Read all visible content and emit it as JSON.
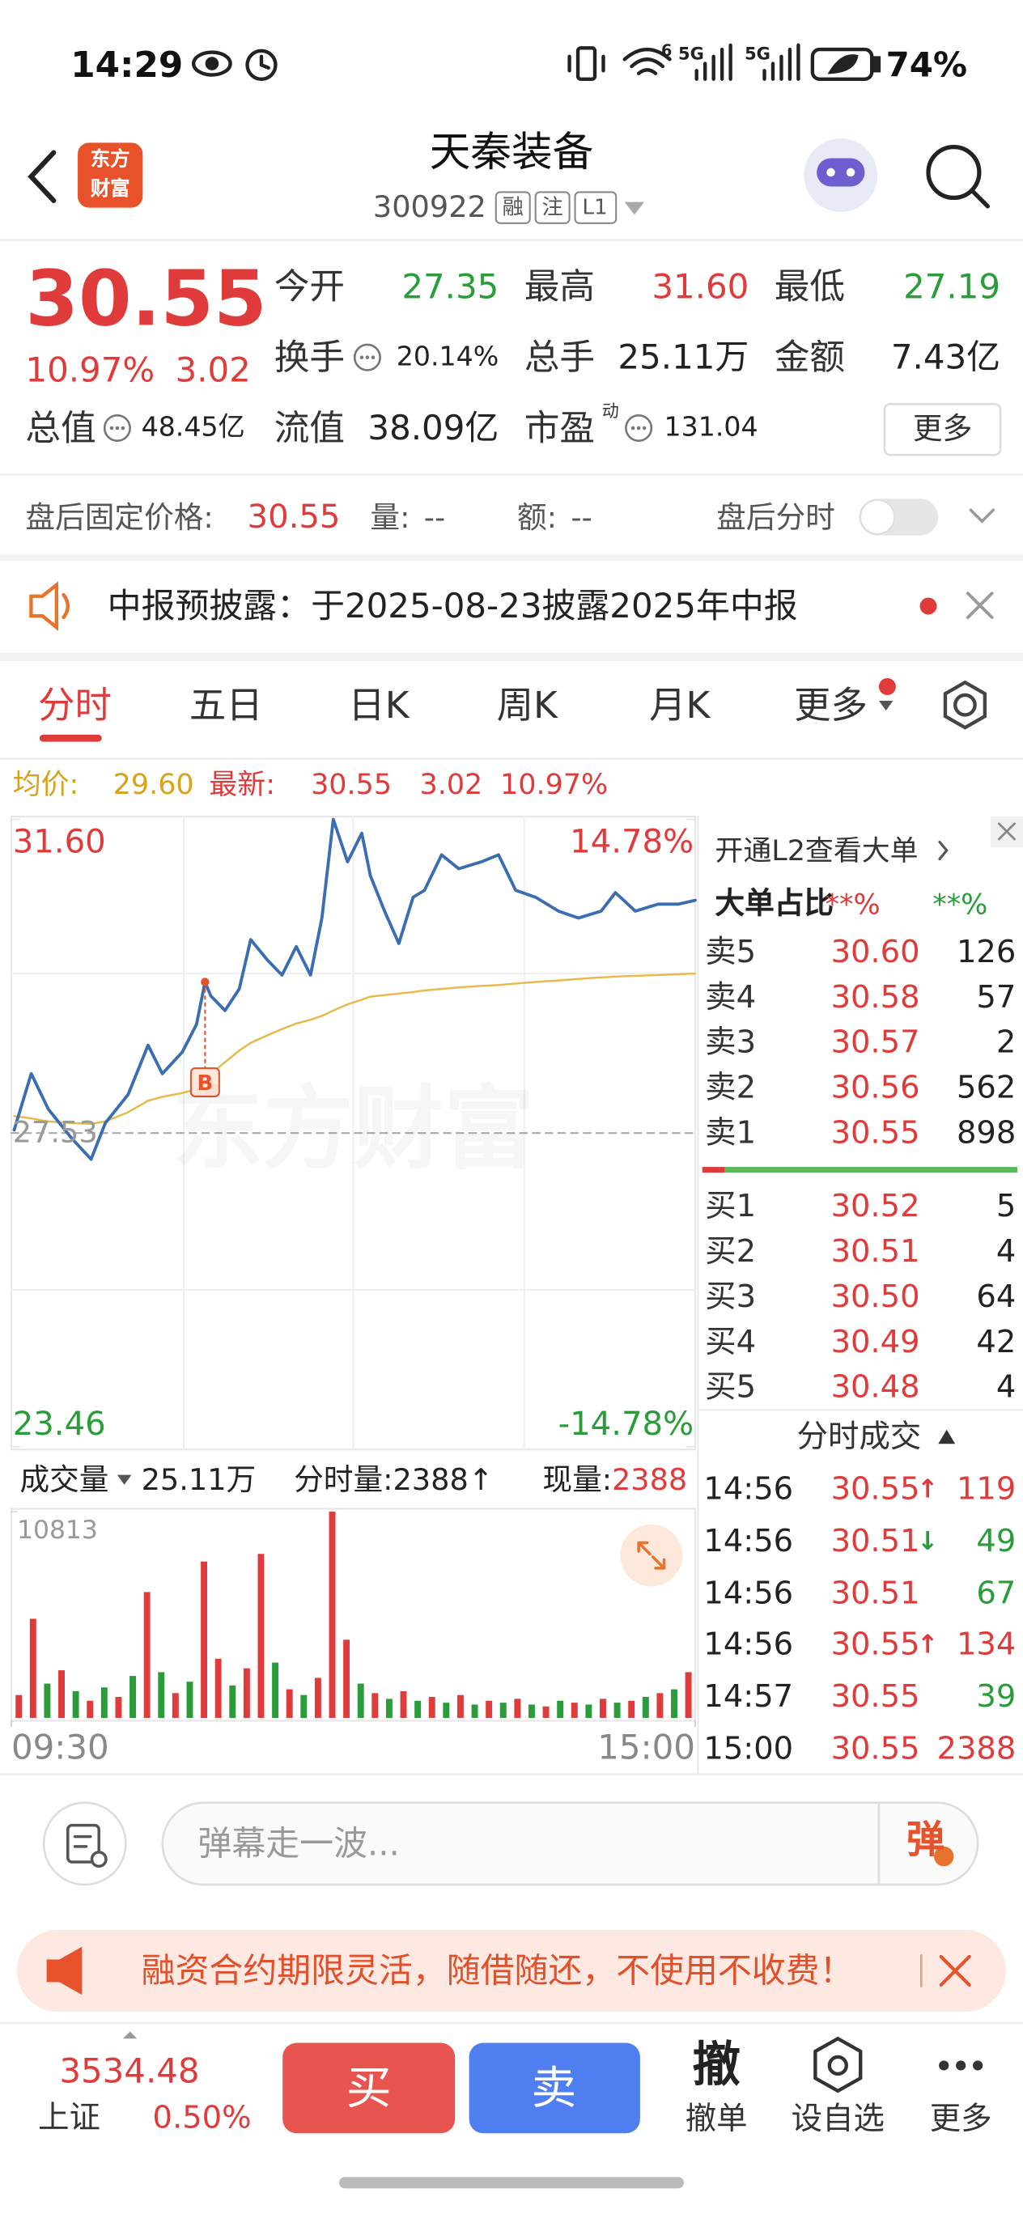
{
  "status": {
    "time": "14:29",
    "wifi": "6",
    "network": [
      "5G",
      "5G"
    ],
    "battery": "74%"
  },
  "header": {
    "title": "天秦装备",
    "code": "300922",
    "tags": [
      "融",
      "注",
      "L1"
    ],
    "logo": [
      "东方",
      "财富"
    ],
    "watermark": "东方财富"
  },
  "quote": {
    "price": "30.55",
    "change_pct": "10.97%",
    "change": "3.02",
    "fields": [
      {
        "label": "今开",
        "value": "27.35",
        "color": "#2a9d3a"
      },
      {
        "label": "最高",
        "value": "31.60",
        "color": "#e03b3b"
      },
      {
        "label": "最低",
        "value": "27.19",
        "color": "#2a9d3a"
      },
      {
        "label": "换手",
        "value": "20.14%",
        "color": "#222222"
      },
      {
        "label": "总手",
        "value": "25.11万",
        "color": "#222222"
      },
      {
        "label": "金额",
        "value": "7.43亿",
        "color": "#222222"
      },
      {
        "label": "总值",
        "value": "48.45亿",
        "color": "#222222"
      },
      {
        "label": "流值",
        "value": "38.09亿",
        "color": "#222222"
      },
      {
        "label": "市盈",
        "value": "131.04",
        "color": "#222222"
      }
    ],
    "pe_tag": "动",
    "more": "更多"
  },
  "after_hours": {
    "price_label": "盘后固定价格:",
    "price": "30.55",
    "volume_label": "量:",
    "volume": "--",
    "amount_label": "额:",
    "amount": "--",
    "toggle_label": "盘后分时"
  },
  "notice": "中报预披露：于2025-08-23披露2025年中报",
  "tabs": [
    "分时",
    "五日",
    "日K",
    "周K",
    "月K",
    "更多"
  ],
  "summary": {
    "avg_label": "均价:",
    "avg": "29.60",
    "last_label": "最新:",
    "last": "30.55",
    "change": "3.02",
    "change_pct": "10.97%"
  },
  "chart_data": [
    {
      "type": "line",
      "xlim": [
        0,
        240
      ],
      "xticks": [
        {
          "value": 0,
          "label": "09:30"
        },
        {
          "value": 240,
          "label": "15:00"
        }
      ],
      "ylim": [
        23.46,
        {
          "value": 31.6,
          "label": "31.60"
        }
      ],
      "yticks": [
        {
          "value": 31.6,
          "label": "31.60"
        },
        23.46
      ],
      "y2lim": [
        -14.78,
        14.78
      ],
      "y2ticks": [
        {
          "value": 14.78,
          "label": "14.78%"
        },
        {
          "value": -14.78,
          "label": "-14.78%"
        }
      ],
      "reference_line": 27.53,
      "grid": true,
      "x": [
        1,
        7,
        13,
        21,
        28,
        33,
        41,
        48,
        53,
        60,
        65,
        68,
        70,
        75,
        80,
        84,
        90,
        95,
        100,
        105,
        109,
        113,
        118,
        123,
        126,
        131,
        136,
        141,
        145,
        151,
        157,
        165,
        171,
        177,
        184,
        192,
        199,
        207,
        212,
        219,
        227,
        234,
        240
      ],
      "series": [
        {
          "color": "#3b6db3",
          "values": [
            27.57,
            28.3,
            27.84,
            27.47,
            27.19,
            27.66,
            28.03,
            28.67,
            28.3,
            28.58,
            28.94,
            29.49,
            29.31,
            29.12,
            29.4,
            30.04,
            29.77,
            29.58,
            29.95,
            29.58,
            30.32,
            31.6,
            31.05,
            31.42,
            30.87,
            30.41,
            29.99,
            30.59,
            30.68,
            31.14,
            30.96,
            31.05,
            31.14,
            30.68,
            30.59,
            30.41,
            30.32,
            30.41,
            30.65,
            30.41,
            30.5,
            30.5,
            30.55
          ]
        },
        {
          "color": "#e8b84a",
          "values": [
            27.75,
            27.72,
            27.68,
            27.66,
            27.65,
            27.68,
            27.8,
            27.95,
            28.0,
            28.05,
            28.1,
            28.2,
            28.3,
            28.45,
            28.6,
            28.7,
            28.8,
            28.88,
            28.95,
            29.0,
            29.05,
            29.12,
            29.2,
            29.26,
            29.3,
            29.32,
            29.34,
            29.36,
            29.38,
            29.4,
            29.42,
            29.44,
            29.45,
            29.47,
            29.49,
            29.51,
            29.53,
            29.55,
            29.56,
            29.57,
            29.58,
            29.59,
            29.6
          ]
        }
      ],
      "annotations": [
        {
          "text": "B",
          "x": 68,
          "y": 29.49
        }
      ]
    },
    {
      "type": "bar",
      "title": "成交量",
      "total": "25.11万",
      "minute_volume": "分时量:2388↑",
      "current_label": "现量:",
      "current": "2388",
      "ylim": [
        0,
        10813
      ],
      "yticks": [
        10813
      ],
      "values": [
        1200,
        5200,
        1800,
        2500,
        1400,
        900,
        1600,
        1100,
        2200,
        6600,
        2400,
        1300,
        1900,
        8200,
        3100,
        1700,
        2600,
        8600,
        2900,
        1500,
        1200,
        2100,
        10813,
        4100,
        1800,
        1300,
        1000,
        1400,
        900,
        1100,
        800,
        1200,
        700,
        900,
        800,
        1000,
        700,
        600,
        900,
        800,
        700,
        1000,
        800,
        900,
        1100,
        1300,
        1500,
        2400
      ],
      "colors": [
        "#e03b3b",
        "#e03b3b",
        "#2a9d3a",
        "#e03b3b",
        "#2a9d3a",
        "#e03b3b",
        "#2a9d3a",
        "#e03b3b",
        "#2a9d3a",
        "#e03b3b",
        "#2a9d3a",
        "#e03b3b",
        "#2a9d3a",
        "#e03b3b",
        "#e03b3b",
        "#2a9d3a",
        "#e03b3b",
        "#e03b3b",
        "#2a9d3a",
        "#e03b3b",
        "#2a9d3a",
        "#e03b3b",
        "#e03b3b",
        "#e03b3b",
        "#2a9d3a",
        "#e03b3b",
        "#2a9d3a",
        "#e03b3b",
        "#2a9d3a",
        "#e03b3b",
        "#2a9d3a",
        "#e03b3b",
        "#2a9d3a",
        "#e03b3b",
        "#2a9d3a",
        "#e03b3b",
        "#2a9d3a",
        "#e03b3b",
        "#2a9d3a",
        "#e03b3b",
        "#2a9d3a",
        "#e03b3b",
        "#2a9d3a",
        "#e03b3b",
        "#2a9d3a",
        "#e03b3b",
        "#2a9d3a",
        "#e03b3b"
      ]
    }
  ],
  "order_book": {
    "l2": "开通L2查看大单",
    "ratio_label": "大单占比",
    "ratio_buy": "**%",
    "ratio_sell": "**%",
    "sell": [
      {
        "label": "卖5",
        "price": "30.60",
        "volume": "126"
      },
      {
        "label": "卖4",
        "price": "30.58",
        "volume": "57"
      },
      {
        "label": "卖3",
        "price": "30.57",
        "volume": "2"
      },
      {
        "label": "卖2",
        "price": "30.56",
        "volume": "562"
      },
      {
        "label": "卖1",
        "price": "30.55",
        "volume": "898"
      }
    ],
    "buy": [
      {
        "label": "买1",
        "price": "30.52",
        "volume": "5"
      },
      {
        "label": "买2",
        "price": "30.51",
        "volume": "4"
      },
      {
        "label": "买3",
        "price": "30.50",
        "volume": "64"
      },
      {
        "label": "买4",
        "price": "30.49",
        "volume": "42"
      },
      {
        "label": "买5",
        "price": "30.48",
        "volume": "4"
      }
    ]
  },
  "trades": {
    "title": "分时成交",
    "rows": [
      {
        "time": "14:56",
        "price": "30.55",
        "arrow": "↑",
        "volume": "119",
        "color": "#e03b3b"
      },
      {
        "time": "14:56",
        "price": "30.51",
        "arrow": "↓",
        "volume": "49",
        "color": "#2a9d3a"
      },
      {
        "time": "14:56",
        "price": "30.51",
        "volume": "67",
        "color": "#2a9d3a"
      },
      {
        "time": "14:56",
        "price": "30.55",
        "arrow": "↑",
        "volume": "134",
        "color": "#e03b3b"
      },
      {
        "time": "14:57",
        "price": "30.55",
        "volume": "39",
        "color": "#2a9d3a"
      },
      {
        "time": "15:00",
        "price": "30.55",
        "volume": "2388",
        "color": "#e03b3b"
      }
    ]
  },
  "comment": {
    "placeholder": "弹幕走一波...",
    "send": "弹"
  },
  "promo": "融资合约期限灵活，随借随还，不使用不收费！",
  "footer": {
    "index_value": "3534.48",
    "index_name": "上证",
    "index_change": "0.50%",
    "buy": "买",
    "sell": "卖",
    "cancel_icon": "撤",
    "cancel": "撤单",
    "watch": "设自选",
    "more": "更多"
  }
}
